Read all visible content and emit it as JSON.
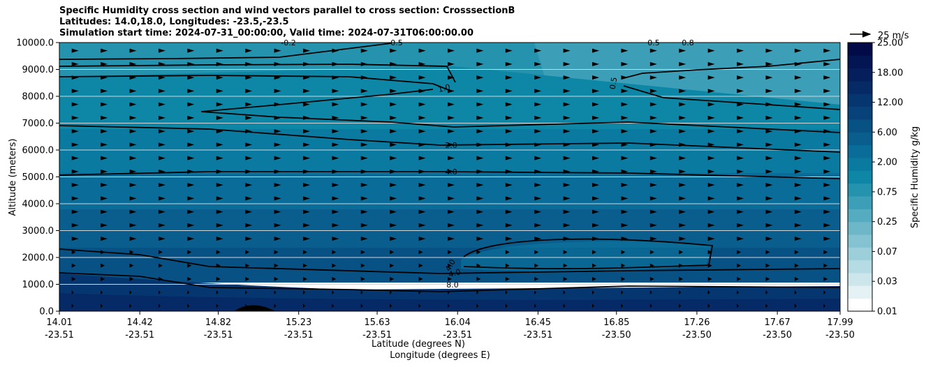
{
  "chart_data": {
    "type": "contour",
    "title_lines": [
      "Specific Humidity cross section and wind vectors parallel to cross section: CrosssectionB",
      "Latitudes: 14.0,18.0, Longitudes: -23.5,-23.5",
      "Simulation start time: 2024-07-31_00:00:00, Valid time: 2024-07-31T06:00:00.00"
    ],
    "ylabel": "Altitude (meters)",
    "xlabel_lines": [
      "Latitude (degrees N)",
      "Longitude (degrees E)"
    ],
    "ylim": [
      0,
      10000
    ],
    "xlim": [
      14.01,
      17.99
    ],
    "y_ticks": [
      "0.0",
      "1000.0",
      "2000.0",
      "3000.0",
      "4000.0",
      "5000.0",
      "6000.0",
      "7000.0",
      "8000.0",
      "9000.0",
      "10000.0"
    ],
    "x_ticks": [
      {
        "lat": "14.01",
        "lon": "-23.51"
      },
      {
        "lat": "14.42",
        "lon": "-23.51"
      },
      {
        "lat": "14.82",
        "lon": "-23.51"
      },
      {
        "lat": "15.23",
        "lon": "-23.51"
      },
      {
        "lat": "15.63",
        "lon": "-23.51"
      },
      {
        "lat": "16.04",
        "lon": "-23.51"
      },
      {
        "lat": "16.45",
        "lon": "-23.51"
      },
      {
        "lat": "16.85",
        "lon": "-23.50"
      },
      {
        "lat": "17.26",
        "lon": "-23.50"
      },
      {
        "lat": "17.67",
        "lon": "-23.50"
      },
      {
        "lat": "17.99",
        "lon": "-23.50"
      }
    ],
    "colorbar": {
      "label": "Specific Humidity g/kg",
      "tick_labels": [
        "0.01",
        "0.03",
        "0.07",
        "0.25",
        "0.75",
        "2.00",
        "6.00",
        "12.00",
        "18.00",
        "25.00"
      ],
      "colors": [
        "#ffffff",
        "#e4f1f5",
        "#cde6ec",
        "#b5dbe4",
        "#9dcfdb",
        "#85c3d2",
        "#6db7c9",
        "#55abc0",
        "#3d9fb7",
        "#2593ae",
        "#0d87a5",
        "#0b7aa0",
        "#0a6c98",
        "#095e8e",
        "#085184",
        "#07437a",
        "#063670",
        "#052a66",
        "#041f5c",
        "#031552",
        "#020b48"
      ]
    },
    "wind_key": {
      "label": "25 m/s"
    },
    "contour_labels": [
      {
        "text": "-0.2"
      },
      {
        "text": "0.5"
      },
      {
        "text": "0.5"
      },
      {
        "text": "0.8"
      },
      {
        "text": "1.0"
      },
      {
        "text": "0.5"
      },
      {
        "text": "2.0"
      },
      {
        "text": "4.0"
      },
      {
        "text": "4.0"
      },
      {
        "text": "4.0"
      },
      {
        "text": "8.0"
      }
    ],
    "grid": "horizontal",
    "wind_vectors": {
      "direction": "parallel to cross section, pointing right"
    }
  }
}
